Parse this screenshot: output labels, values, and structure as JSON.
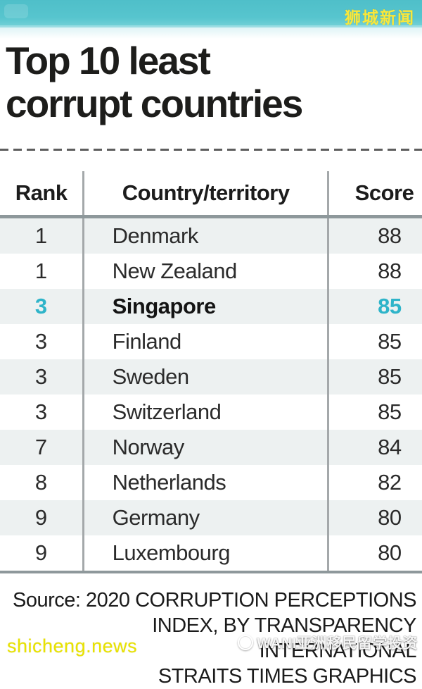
{
  "banner": {
    "brand": "狮城新闻",
    "background_color": "#57c5ce",
    "brand_color": "#f9e83b"
  },
  "title": {
    "line1": "Top 10 least",
    "line2": "corrupt countries"
  },
  "table": {
    "columns": [
      "Rank",
      "Country/territory",
      "Score"
    ],
    "highlight_color": "#2eb4c9",
    "rows": [
      {
        "rank": "1",
        "country": "Denmark",
        "score": "88"
      },
      {
        "rank": "1",
        "country": "New Zealand",
        "score": "88"
      },
      {
        "rank": "3",
        "country": "Singapore",
        "score": "85"
      },
      {
        "rank": "3",
        "country": "Finland",
        "score": "85"
      },
      {
        "rank": "3",
        "country": "Sweden",
        "score": "85"
      },
      {
        "rank": "3",
        "country": "Switzerland",
        "score": "85"
      },
      {
        "rank": "7",
        "country": "Norway",
        "score": "84"
      },
      {
        "rank": "8",
        "country": "Netherlands",
        "score": "82"
      },
      {
        "rank": "9",
        "country": "Germany",
        "score": "80"
      },
      {
        "rank": "9",
        "country": "Luxembourg",
        "score": "80"
      }
    ]
  },
  "chart_data": {
    "type": "table",
    "title": "Top 10 least corrupt countries",
    "columns": [
      "Rank",
      "Country/territory",
      "Score"
    ],
    "rows": [
      [
        1,
        "Denmark",
        88
      ],
      [
        1,
        "New Zealand",
        88
      ],
      [
        3,
        "Singapore",
        85
      ],
      [
        3,
        "Finland",
        85
      ],
      [
        3,
        "Sweden",
        85
      ],
      [
        3,
        "Switzerland",
        85
      ],
      [
        7,
        "Norway",
        84
      ],
      [
        8,
        "Netherlands",
        82
      ],
      [
        9,
        "Germany",
        80
      ],
      [
        9,
        "Luxembourg",
        80
      ]
    ],
    "highlighted_row": "Singapore",
    "source": "2020 Corruption Perceptions Index, by Transparency International",
    "credit": "Straits Times Graphics"
  },
  "source": {
    "line1": "Source: 2020 CORRUPTION PERCEPTIONS",
    "line2": "INDEX, BY TRANSPARENCY INTERNATIONAL",
    "line3": "STRAITS TIMES GRAPHICS"
  },
  "watermark": {
    "overlay_text": "WANI亚洲移民留学投资",
    "site_text": "shicheng.news"
  }
}
